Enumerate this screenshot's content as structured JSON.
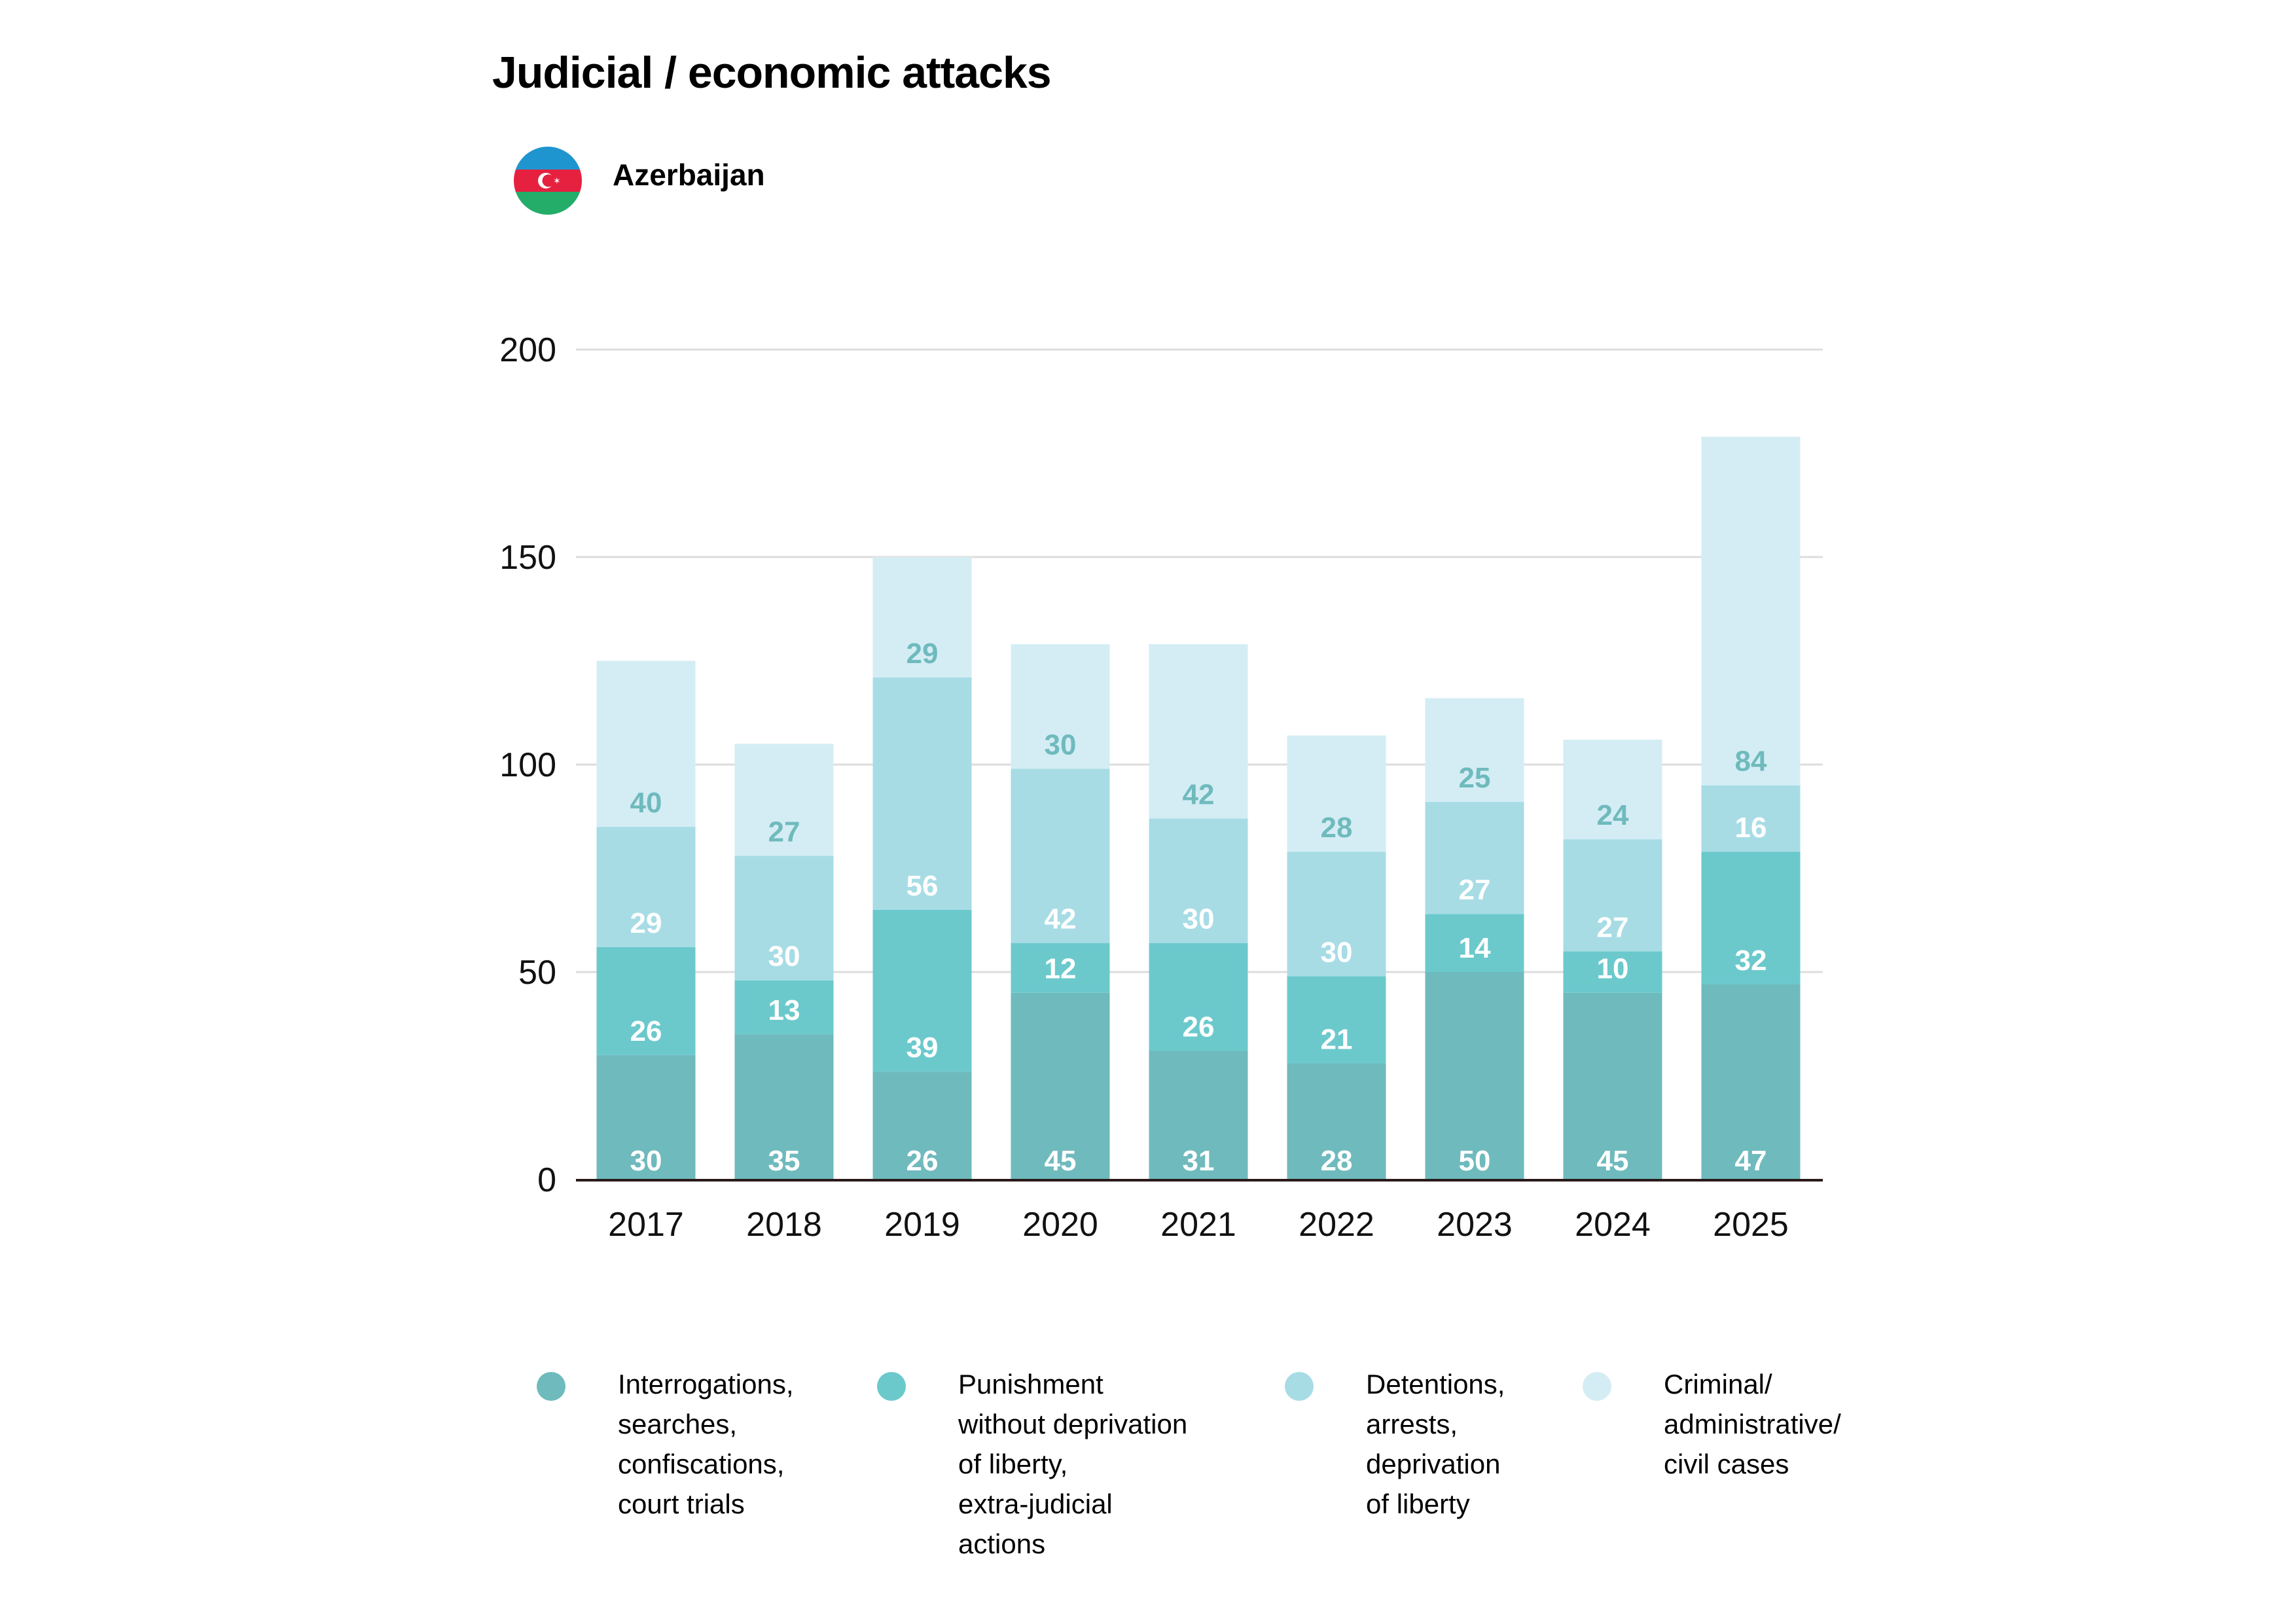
{
  "header": {
    "title": "Judicial / economic attacks",
    "country": "Azerbaijan",
    "flag_icon": "azerbaijan-flag-icon"
  },
  "colors": {
    "interrogations": "#6fbabd",
    "punishment": "#6bc9cc",
    "detentions": "#a7dce5",
    "criminal": "#d4edf5",
    "label_light": "#ffffff",
    "label_dark": "#6fbabd",
    "gridline": "#dddddd",
    "axis": "#2a1a1a"
  },
  "chart_data": {
    "type": "bar",
    "stacked": true,
    "title": "Judicial / economic attacks",
    "subtitle": "Azerbaijan",
    "xlabel": "",
    "ylabel": "",
    "ylim": [
      0,
      200
    ],
    "yticks": [
      0,
      50,
      100,
      150,
      200
    ],
    "grid": true,
    "legend_position": "bottom",
    "categories": [
      "2017",
      "2018",
      "2019",
      "2020",
      "2021",
      "2022",
      "2023",
      "2024",
      "2025"
    ],
    "series": [
      {
        "name": "Interrogations, searches, confiscations, court trials",
        "key": "interrogations",
        "values": [
          30,
          35,
          26,
          45,
          31,
          28,
          50,
          45,
          47
        ]
      },
      {
        "name": "Punishment without deprivation of liberty, extra-judicial actions",
        "key": "punishment",
        "values": [
          26,
          13,
          39,
          12,
          26,
          21,
          14,
          10,
          32
        ]
      },
      {
        "name": "Detentions, arrests, deprivation of liberty",
        "key": "detentions",
        "values": [
          29,
          30,
          56,
          42,
          30,
          30,
          27,
          27,
          16
        ]
      },
      {
        "name": "Criminal/ administrative/ civil cases",
        "key": "criminal",
        "values": [
          40,
          27,
          29,
          30,
          42,
          28,
          25,
          24,
          84
        ]
      }
    ]
  },
  "legend": [
    {
      "key": "interrogations",
      "text": "Interrogations,\nsearches,\nconfiscations,\ncourt trials"
    },
    {
      "key": "punishment",
      "text": "Punishment\nwithout deprivation\nof liberty,\nextra-judicial\nactions"
    },
    {
      "key": "detentions",
      "text": "Detentions,\narrests,\ndeprivation\nof liberty"
    },
    {
      "key": "criminal",
      "text": "Criminal/\nadministrative/\ncivil cases"
    }
  ]
}
